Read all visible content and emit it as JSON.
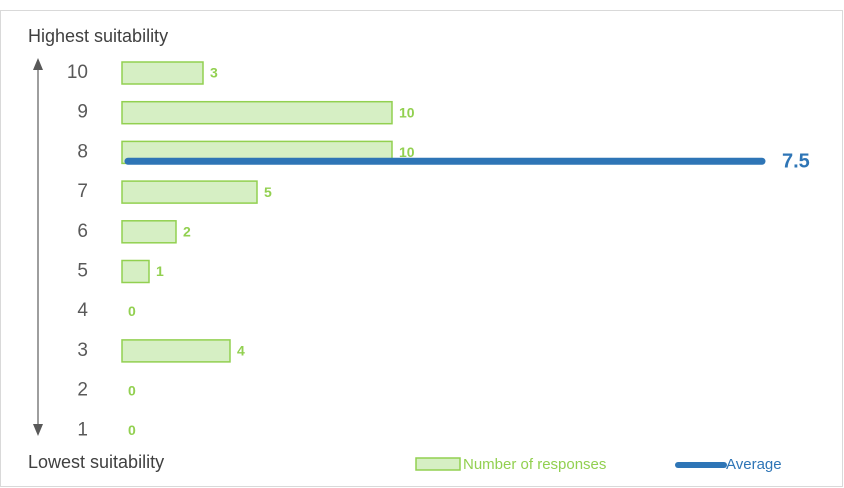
{
  "chart_data": {
    "type": "bar",
    "top_label": "Highest suitability",
    "bottom_label": "Lowest suitability",
    "categories": [
      "10",
      "9",
      "8",
      "7",
      "6",
      "5",
      "4",
      "3",
      "2",
      "1"
    ],
    "series": [
      {
        "name": "Number of responses",
        "color": "#92d050",
        "fill": "#d6efc4",
        "values": [
          3,
          10,
          10,
          5,
          2,
          1,
          0,
          4,
          0,
          0
        ]
      }
    ],
    "average": {
      "name": "Average",
      "color": "#2e75b6",
      "value": 7.5
    }
  }
}
